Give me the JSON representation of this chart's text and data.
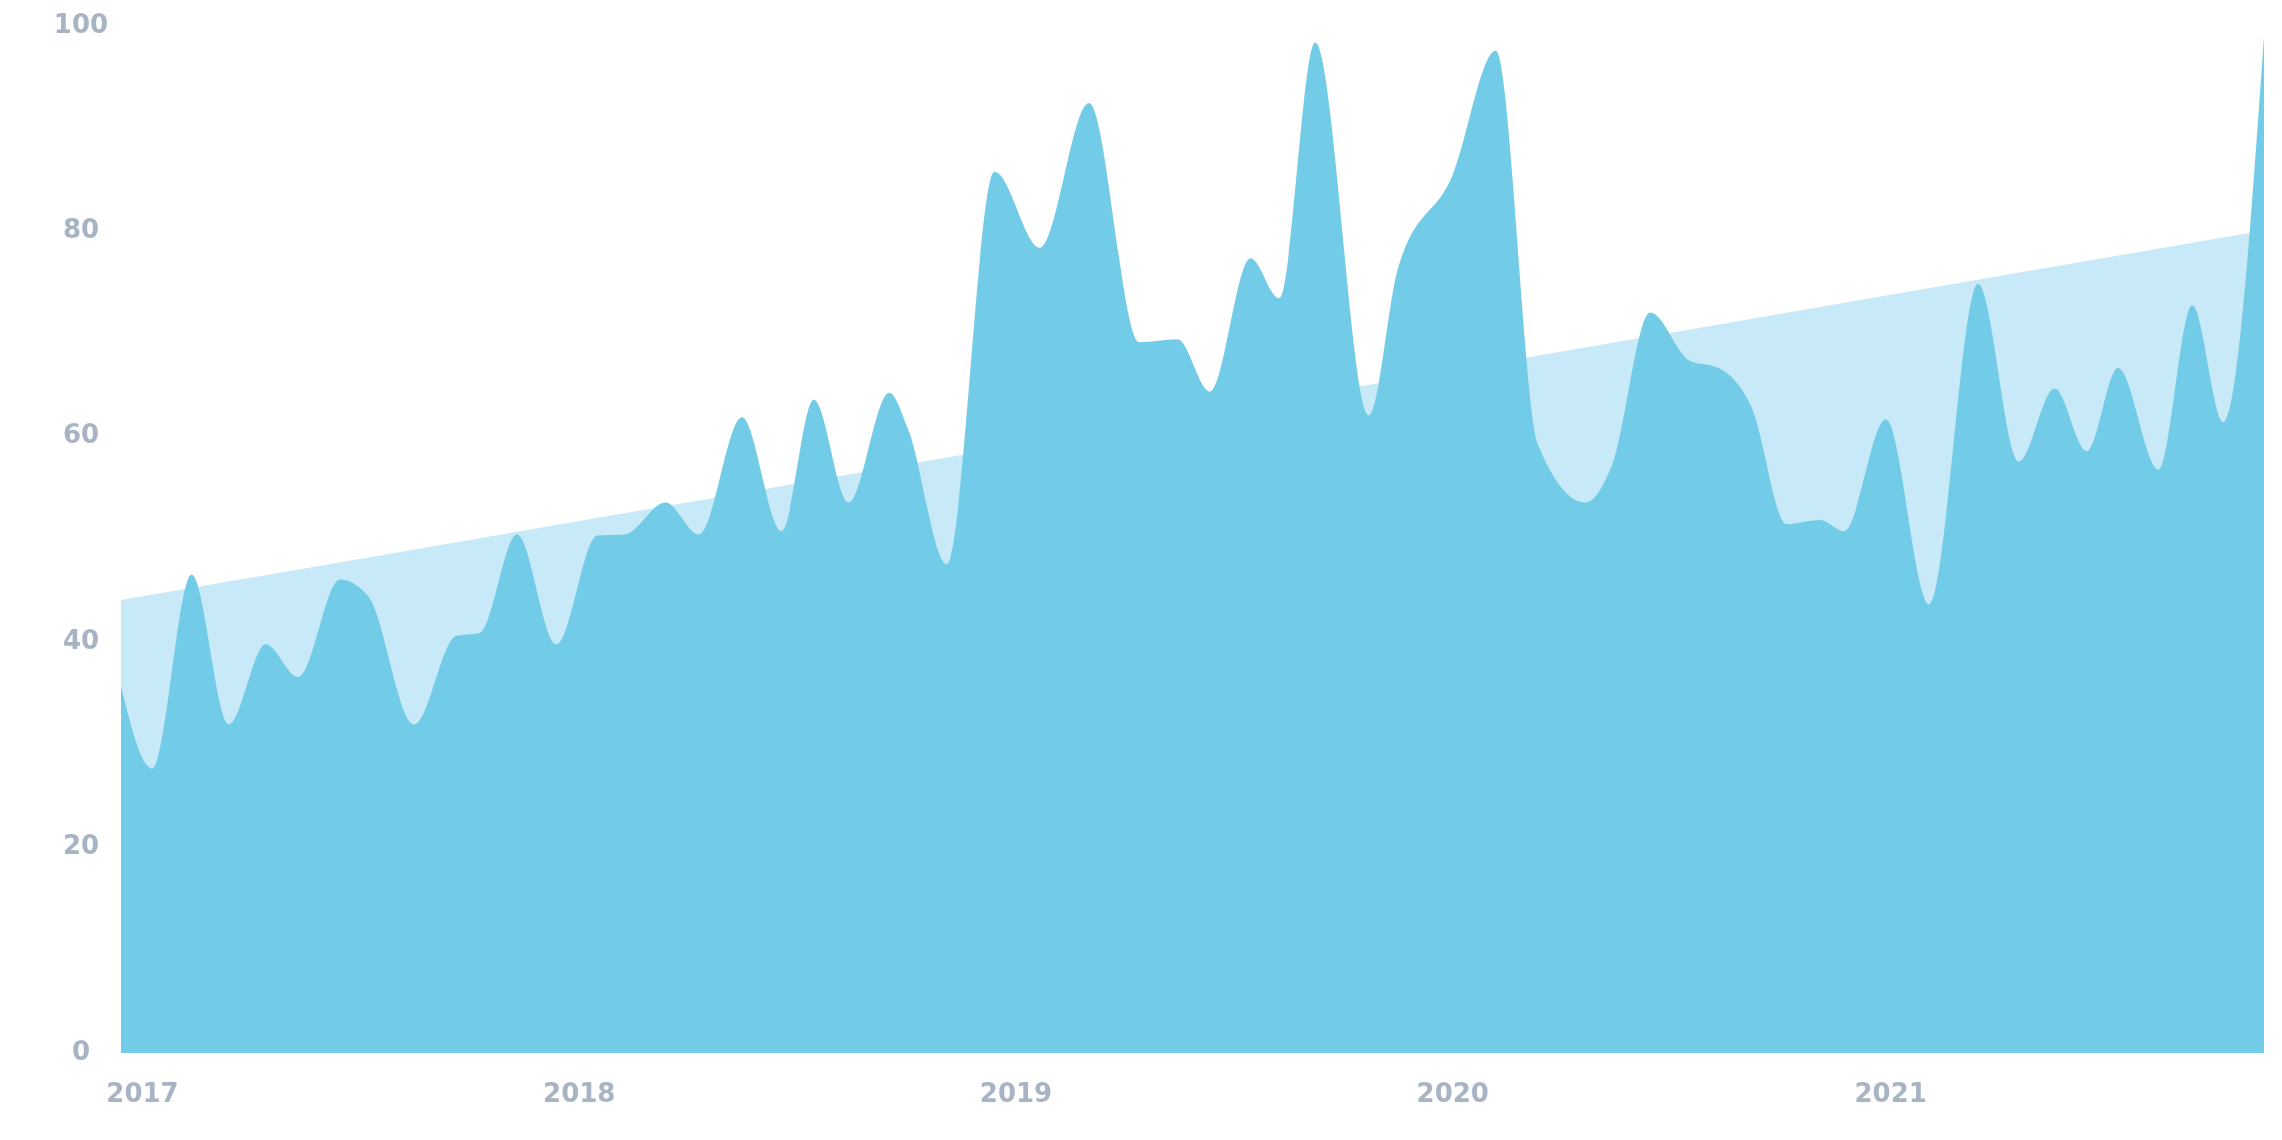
{
  "chart_data": {
    "type": "area",
    "xlim": [
      "2016-12-14",
      "2021-11-09"
    ],
    "xticks": [
      {
        "value": "2017-01-01",
        "label": "2017"
      },
      {
        "value": "2018-01-01",
        "label": "2018"
      },
      {
        "value": "2019-01-01",
        "label": "2019"
      },
      {
        "value": "2020-01-01",
        "label": "2020"
      },
      {
        "value": "2021-01-01",
        "label": "2021"
      }
    ],
    "ylim": [
      0,
      100
    ],
    "yticks": [
      0,
      20,
      40,
      60,
      80,
      100
    ],
    "grid": false,
    "series": [
      {
        "color": "#c8e9f7",
        "x": [
          "2016-12-14",
          "2021-11-09"
        ],
        "values": [
          44,
          80
        ]
      },
      {
        "color": "#72cce8",
        "x": [
          "2016-12-14",
          "2017-01-09",
          "2017-02-11",
          "2017-03-14",
          "2017-04-14",
          "2017-05-11",
          "2017-06-15",
          "2017-07-09",
          "2017-08-16",
          "2017-09-20",
          "2017-10-10",
          "2017-11-10",
          "2017-12-13",
          "2018-01-16",
          "2018-02-08",
          "2018-03-14",
          "2018-04-11",
          "2018-05-17",
          "2018-06-19",
          "2018-07-16",
          "2018-08-14",
          "2018-09-17",
          "2018-10-03",
          "2018-11-04",
          "2018-12-14",
          "2019-01-21",
          "2019-03-03",
          "2019-04-14",
          "2019-05-16",
          "2019-06-12",
          "2019-07-16",
          "2019-08-09",
          "2019-09-08",
          "2019-10-23",
          "2019-11-16",
          "2020-01-01",
          "2020-02-06",
          "2020-03-12",
          "2020-04-21",
          "2020-05-13",
          "2020-06-14",
          "2020-07-17",
          "2020-08-10",
          "2020-09-07",
          "2020-10-06",
          "2020-11-03",
          "2020-11-23",
          "2020-12-28",
          "2021-02-02",
          "2021-03-15",
          "2021-04-18",
          "2021-05-18",
          "2021-06-14",
          "2021-07-10",
          "2021-08-13",
          "2021-09-10",
          "2021-10-06",
          "2021-11-09"
        ],
        "values": [
          35.6,
          27.6,
          46.5,
          31.9,
          39.7,
          36.5,
          46,
          44.3,
          31.9,
          40.5,
          40.8,
          50.4,
          39.7,
          50.3,
          50.4,
          53.5,
          50.4,
          61.8,
          50.7,
          63.5,
          53.5,
          64.2,
          60.6,
          47.5,
          85.7,
          78.3,
          92.4,
          69.1,
          69.4,
          64.3,
          77.3,
          73.4,
          98.3,
          62,
          76.2,
          85.4,
          97.5,
          59.2,
          53.5,
          57.1,
          72,
          67.3,
          66.6,
          62.7,
          51.4,
          51.8,
          50.7,
          61.6,
          43.6,
          74.8,
          57.5,
          64.6,
          58.5,
          66.6,
          56.7,
          72.7,
          61.3,
          98.9
        ]
      }
    ]
  }
}
